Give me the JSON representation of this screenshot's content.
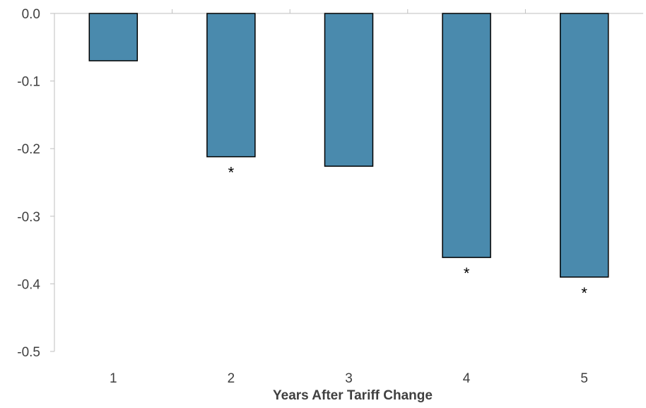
{
  "chart_data": {
    "type": "bar",
    "title": "",
    "xlabel": "Years After Tariff Change",
    "ylabel": "",
    "categories": [
      "1",
      "2",
      "3",
      "4",
      "5"
    ],
    "values": [
      -0.07,
      -0.212,
      -0.226,
      -0.361,
      -0.39
    ],
    "significance": [
      "",
      "*",
      "",
      "*",
      "*"
    ],
    "ylim": [
      -0.5,
      0.0
    ],
    "yticks": [
      "0.0",
      "-0.1",
      "-0.2",
      "-0.3",
      "-0.4",
      "-0.5"
    ],
    "ytick_values": [
      0.0,
      -0.1,
      -0.2,
      -0.3,
      -0.4,
      -0.5
    ],
    "grid": false,
    "legend": "none",
    "bar_color": "#4a8aad",
    "bar_edge_color": "#000000",
    "axis_color": "#bfbfbf",
    "text_color": "#404040"
  }
}
